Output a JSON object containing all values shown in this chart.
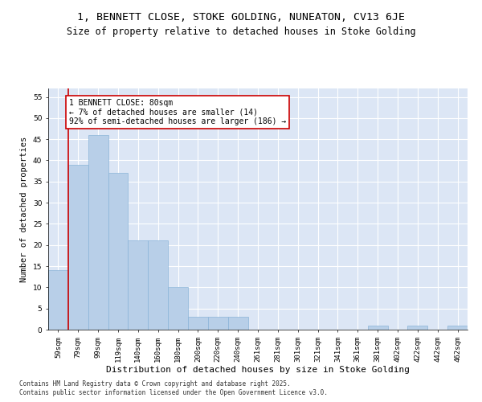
{
  "title": "1, BENNETT CLOSE, STOKE GOLDING, NUNEATON, CV13 6JE",
  "subtitle": "Size of property relative to detached houses in Stoke Golding",
  "xlabel": "Distribution of detached houses by size in Stoke Golding",
  "ylabel": "Number of detached properties",
  "categories": [
    "59sqm",
    "79sqm",
    "99sqm",
    "119sqm",
    "140sqm",
    "160sqm",
    "180sqm",
    "200sqm",
    "220sqm",
    "240sqm",
    "261sqm",
    "281sqm",
    "301sqm",
    "321sqm",
    "341sqm",
    "361sqm",
    "381sqm",
    "402sqm",
    "422sqm",
    "442sqm",
    "462sqm"
  ],
  "values": [
    14,
    39,
    46,
    37,
    21,
    21,
    10,
    3,
    3,
    3,
    0,
    0,
    0,
    0,
    0,
    0,
    1,
    0,
    1,
    0,
    1
  ],
  "bar_color": "#b8cfe8",
  "bar_edge_color": "#8ab4d8",
  "highlight_color": "#cc0000",
  "annotation_text": "1 BENNETT CLOSE: 80sqm\n← 7% of detached houses are smaller (14)\n92% of semi-detached houses are larger (186) →",
  "annotation_box_color": "#cc0000",
  "background_color": "#dce6f5",
  "ylim": [
    0,
    57
  ],
  "yticks": [
    0,
    5,
    10,
    15,
    20,
    25,
    30,
    35,
    40,
    45,
    50,
    55
  ],
  "footer_line1": "Contains HM Land Registry data © Crown copyright and database right 2025.",
  "footer_line2": "Contains public sector information licensed under the Open Government Licence v3.0.",
  "title_fontsize": 9.5,
  "subtitle_fontsize": 8.5,
  "xlabel_fontsize": 8,
  "ylabel_fontsize": 7.5,
  "tick_fontsize": 6.5,
  "annotation_fontsize": 7,
  "footer_fontsize": 5.5
}
